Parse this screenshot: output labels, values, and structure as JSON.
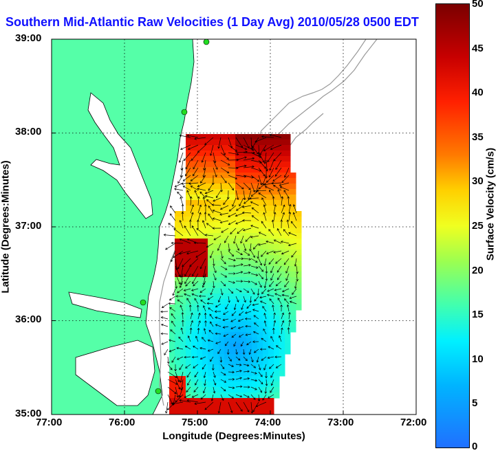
{
  "title": "Southern Mid-Atlantic Raw Velocities (1 Day Avg) 2010/05/28 0500 EDT",
  "y_axis": {
    "label": "Latitude (Degrees:Minutes)",
    "ticks": [
      "39:00",
      "38:00",
      "37:00",
      "36:00",
      "35:00"
    ]
  },
  "x_axis": {
    "label": "Longitude (Degrees:Minutes)",
    "ticks": [
      "77:00",
      "76:00",
      "75:00",
      "74:00",
      "73:00",
      "72:00"
    ]
  },
  "colorbar": {
    "label": "Surface Velocity (cm/s)",
    "ticks": [
      "50",
      "45",
      "40",
      "35",
      "30",
      "25",
      "20",
      "15",
      "10",
      "5",
      "0"
    ],
    "range": [
      0,
      50
    ]
  },
  "map": {
    "lon_range": [
      -77,
      -72
    ],
    "lat_range": [
      35,
      39
    ],
    "grid": true,
    "land_color": "#55ffa8",
    "contour_color": "#999999",
    "station_color": "#22dd22"
  }
}
